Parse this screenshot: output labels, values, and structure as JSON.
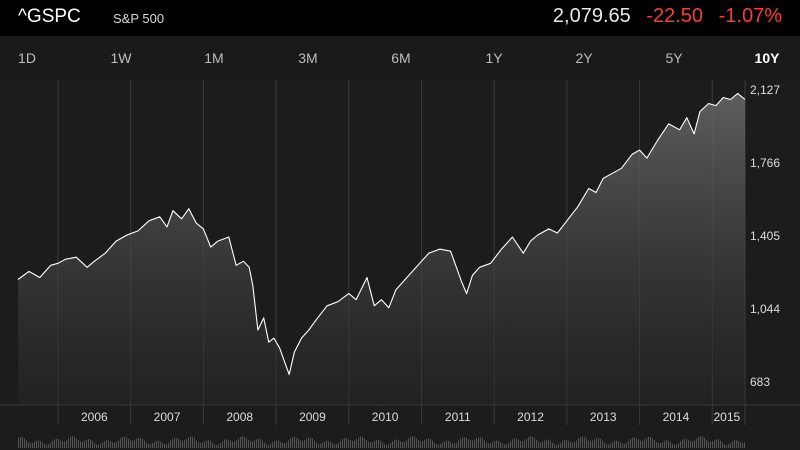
{
  "header": {
    "symbol": "^GSPC",
    "name": "S&P 500",
    "price": "2,079.65",
    "change": "-22.50",
    "change_percent": "-1.07%"
  },
  "colors": {
    "negative": "#ff3b30",
    "line": "#ffffff",
    "background": "#1c1c1c",
    "header_background": "#000000"
  },
  "tabs": [
    {
      "label": "1D",
      "active": false
    },
    {
      "label": "1W",
      "active": false
    },
    {
      "label": "1M",
      "active": false
    },
    {
      "label": "3M",
      "active": false
    },
    {
      "label": "6M",
      "active": false
    },
    {
      "label": "1Y",
      "active": false
    },
    {
      "label": "2Y",
      "active": false
    },
    {
      "label": "5Y",
      "active": false
    },
    {
      "label": "10Y",
      "active": true
    }
  ],
  "chart_data": {
    "type": "area",
    "title": "",
    "xlabel": "",
    "ylabel": "",
    "x_ticks": [
      "2006",
      "2007",
      "2008",
      "2009",
      "2010",
      "2011",
      "2012",
      "2013",
      "2014",
      "2015"
    ],
    "y_ticks": [
      "2,127",
      "1,766",
      "1,405",
      "1,044",
      "683"
    ],
    "ylim": [
      683,
      2127
    ],
    "xlim": [
      2005.45,
      2015.45
    ],
    "grid": "vertical",
    "series": [
      {
        "x": [
          2005.45,
          2005.6,
          2005.75,
          2005.9,
          2006.0,
          2006.1,
          2006.25,
          2006.4,
          2006.5,
          2006.65,
          2006.8,
          2006.95,
          2007.1,
          2007.25,
          2007.4,
          2007.5,
          2007.58,
          2007.7,
          2007.8,
          2007.9,
          2008.0,
          2008.1,
          2008.2,
          2008.35,
          2008.45,
          2008.55,
          2008.63,
          2008.68,
          2008.75,
          2008.83,
          2008.9,
          2008.97,
          2009.05,
          2009.12,
          2009.18,
          2009.25,
          2009.35,
          2009.45,
          2009.55,
          2009.7,
          2009.85,
          2010.0,
          2010.1,
          2010.25,
          2010.35,
          2010.45,
          2010.55,
          2010.65,
          2010.75,
          2010.9,
          2011.0,
          2011.1,
          2011.25,
          2011.4,
          2011.55,
          2011.62,
          2011.7,
          2011.8,
          2011.95,
          2012.1,
          2012.25,
          2012.4,
          2012.5,
          2012.6,
          2012.75,
          2012.87,
          2013.0,
          2013.15,
          2013.3,
          2013.4,
          2013.5,
          2013.6,
          2013.75,
          2013.9,
          2014.0,
          2014.1,
          2014.25,
          2014.4,
          2014.55,
          2014.65,
          2014.75,
          2014.83,
          2014.95,
          2015.05,
          2015.15,
          2015.25,
          2015.35,
          2015.45
        ],
        "values": [
          1190,
          1230,
          1200,
          1260,
          1270,
          1290,
          1300,
          1250,
          1280,
          1320,
          1380,
          1410,
          1430,
          1480,
          1500,
          1450,
          1530,
          1490,
          1540,
          1470,
          1440,
          1350,
          1380,
          1400,
          1260,
          1280,
          1250,
          1160,
          940,
          1000,
          880,
          900,
          850,
          780,
          720,
          830,
          900,
          940,
          990,
          1060,
          1080,
          1120,
          1090,
          1200,
          1060,
          1090,
          1050,
          1140,
          1180,
          1240,
          1280,
          1320,
          1340,
          1330,
          1180,
          1120,
          1210,
          1250,
          1270,
          1340,
          1400,
          1320,
          1380,
          1410,
          1440,
          1420,
          1480,
          1550,
          1640,
          1620,
          1690,
          1710,
          1740,
          1810,
          1830,
          1790,
          1880,
          1960,
          1930,
          1990,
          1910,
          2020,
          2060,
          2050,
          2090,
          2080,
          2110,
          2080
        ]
      }
    ]
  }
}
